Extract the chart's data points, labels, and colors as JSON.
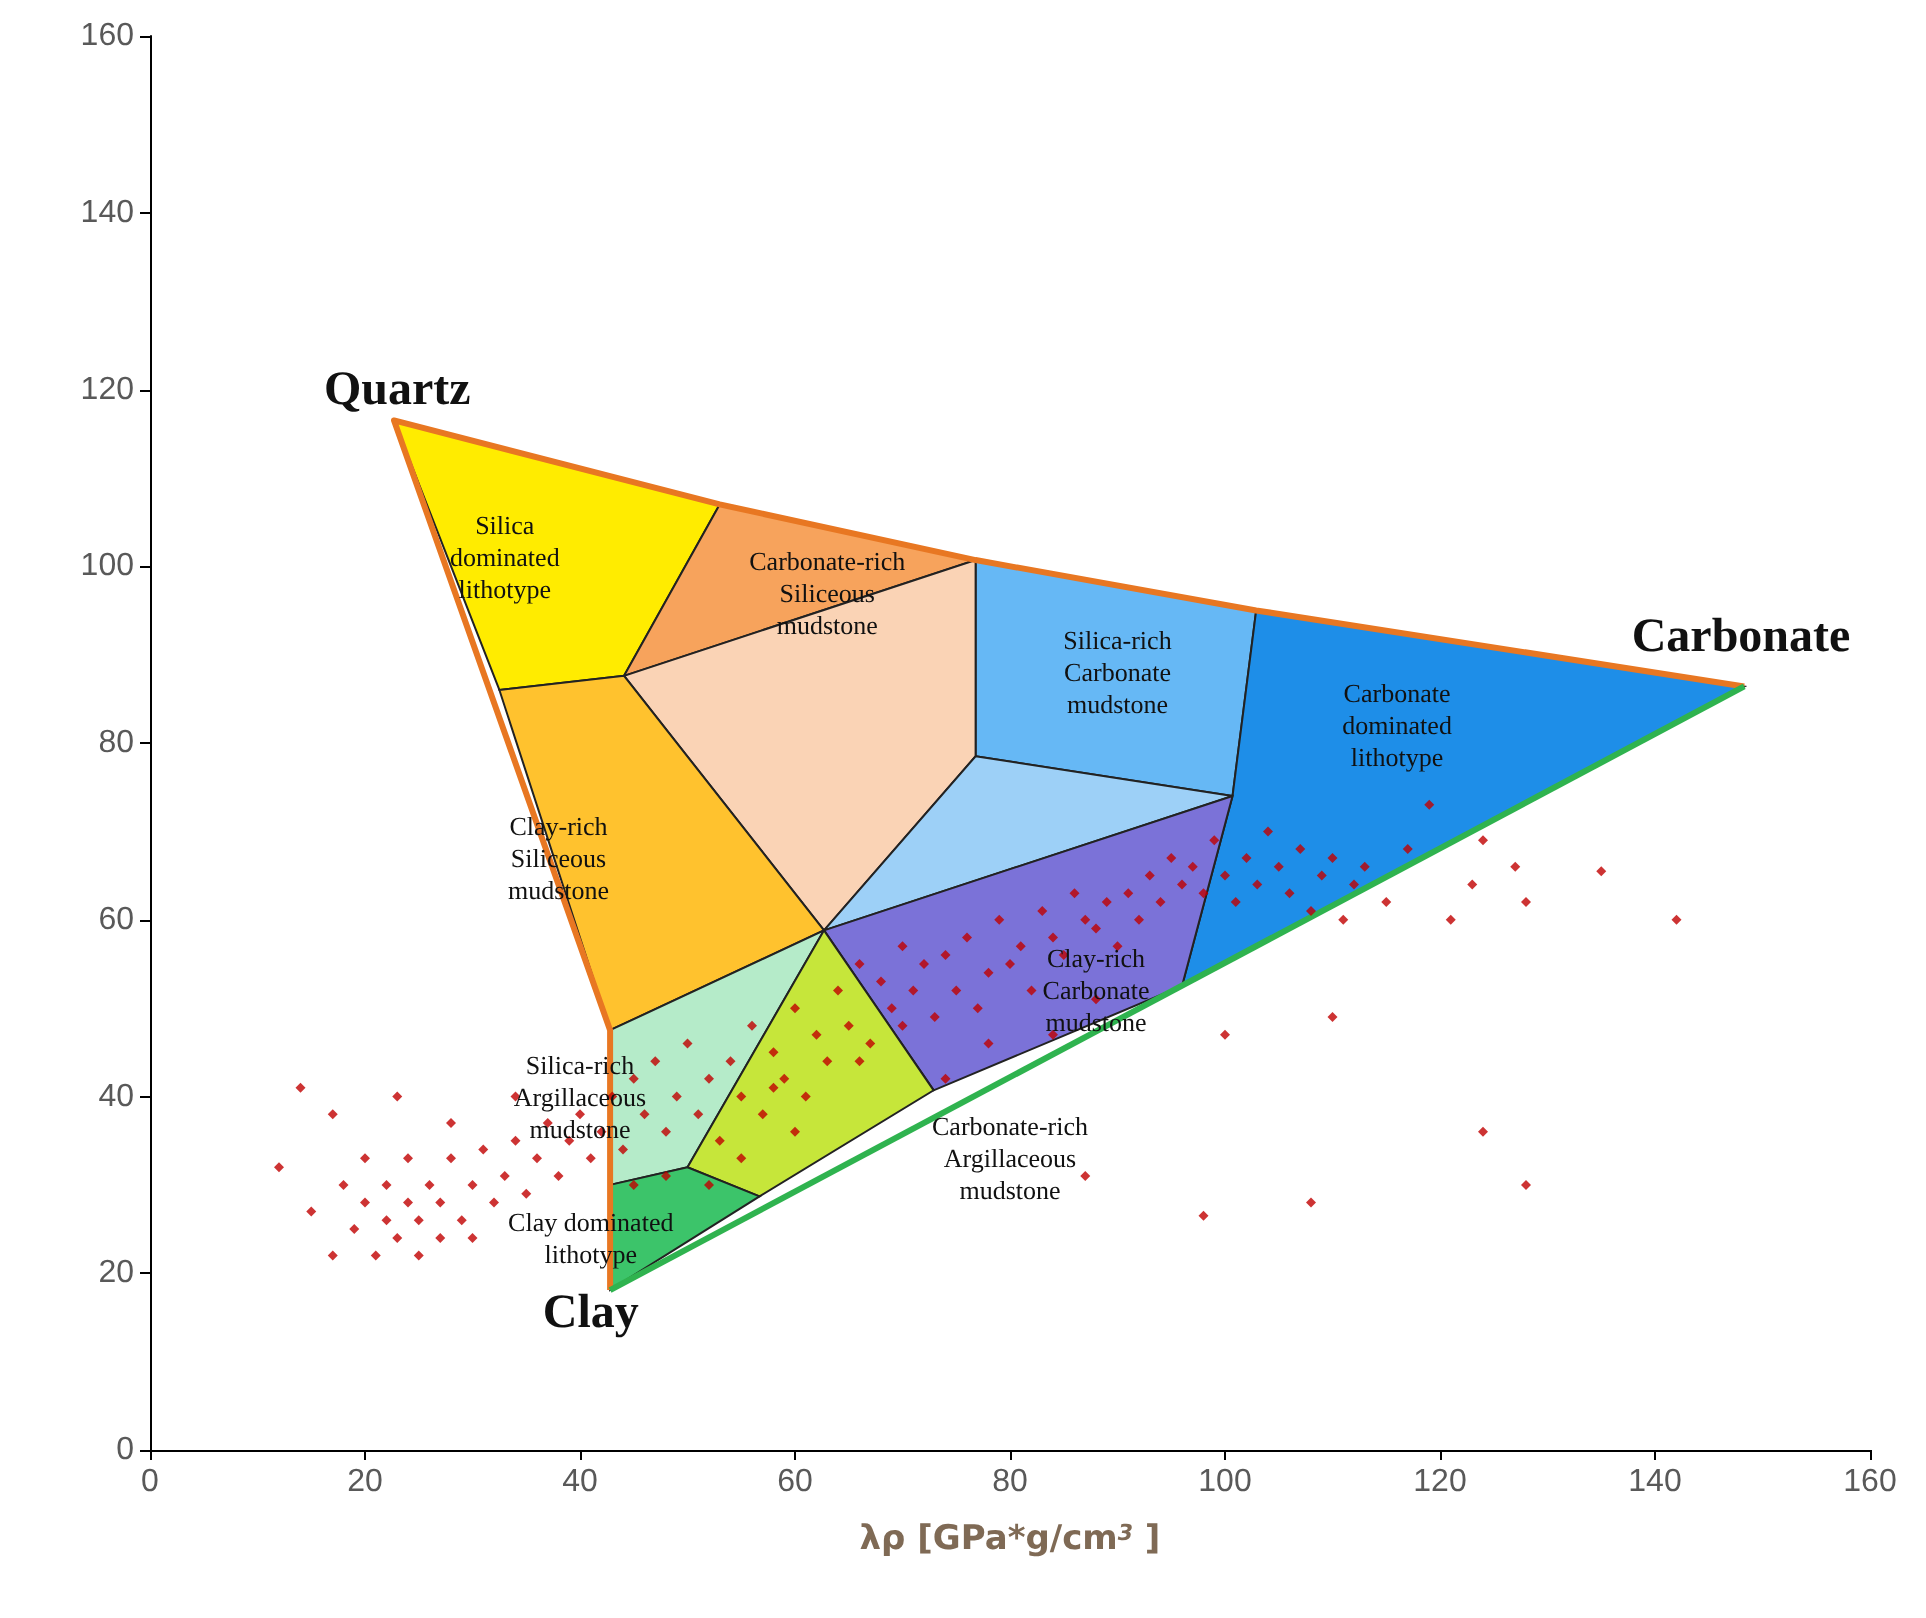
{
  "chart_data": {
    "type": "scatter",
    "xlabel": "λρ [GPa*g/cm$^{3}$ ]",
    "xlim": [
      0,
      160
    ],
    "ylim": [
      0,
      160
    ],
    "xticks": [
      0,
      20,
      40,
      60,
      80,
      100,
      120,
      140,
      160
    ],
    "yticks": [
      0,
      20,
      40,
      60,
      80,
      100,
      120,
      140,
      160
    ],
    "grid": false,
    "marker": "diamond",
    "series": [
      {
        "color": "#c00000",
        "x": [
          12,
          14,
          15,
          17,
          17,
          18,
          19,
          20,
          20,
          21,
          22,
          22,
          23,
          24,
          24,
          25,
          25,
          26,
          27,
          27,
          28,
          29,
          30,
          30,
          31,
          32,
          33,
          34,
          35,
          36,
          37,
          38,
          39,
          40,
          41,
          23,
          28,
          34,
          42,
          43,
          44,
          45,
          46,
          47,
          48,
          49,
          50,
          51,
          52,
          53,
          54,
          55,
          56,
          57,
          58,
          59,
          60,
          61,
          62,
          48,
          52,
          55,
          45,
          63,
          64,
          65,
          66,
          67,
          68,
          69,
          70,
          71,
          72,
          73,
          74,
          75,
          76,
          77,
          78,
          79,
          80,
          81,
          82,
          83,
          84,
          85,
          86,
          87,
          88,
          89,
          90,
          91,
          92,
          93,
          94,
          95,
          96,
          97,
          98,
          99,
          100,
          101,
          102,
          103,
          104,
          105,
          106,
          107,
          108,
          109,
          110,
          111,
          112,
          113,
          115,
          117,
          119,
          121,
          123,
          124,
          127,
          128,
          135,
          142,
          124,
          128,
          108,
          98,
          87,
          100,
          110,
          66,
          74,
          84,
          88,
          70,
          78,
          60,
          58
        ],
        "values": [
          32,
          41,
          27,
          38,
          22,
          30,
          25,
          28,
          33,
          22,
          26,
          30,
          24,
          28,
          33,
          22,
          26,
          30,
          24,
          28,
          33,
          26,
          30,
          24,
          34,
          28,
          31,
          35,
          29,
          33,
          37,
          31,
          35,
          38,
          33,
          40,
          37,
          40,
          36,
          40,
          34,
          42,
          38,
          44,
          36,
          40,
          46,
          38,
          42,
          35,
          44,
          40,
          48,
          38,
          45,
          42,
          50,
          40,
          47,
          31,
          30,
          33,
          30,
          44,
          52,
          48,
          55,
          46,
          53,
          50,
          57,
          52,
          55,
          49,
          56,
          52,
          58,
          50,
          54,
          60,
          55,
          57,
          52,
          61,
          58,
          56,
          63,
          60,
          59,
          62,
          57,
          63,
          60,
          65,
          62,
          67,
          64,
          66,
          63,
          69,
          65,
          62,
          67,
          64,
          70,
          66,
          63,
          68,
          61,
          65,
          67,
          60,
          64,
          66,
          62,
          68,
          73,
          60,
          64,
          69,
          66,
          62,
          65.5,
          60,
          36,
          30,
          28,
          26.5,
          31,
          47,
          49,
          44,
          42,
          47,
          51,
          48,
          46,
          36,
          41
        ]
      }
    ],
    "annotations": [
      "Quartz",
      "Carbonate",
      "Clay",
      "Silica\ndominated\nlithotype",
      "Carbonate-rich\nSiliceous\nmudstone",
      "Silica-rich\nCarbonate\nmudstone",
      "Carbonate\ndominated\nlithotype",
      "Clay-rich\nSiliceous\nmudstone",
      "Clay-rich\nCarbonate\nmudstone",
      "Silica-rich\nArgillaceous\nmudstone",
      "Carbonate-rich\nArgillaceous\nmudstone",
      "Clay dominated\nlithotype"
    ]
  }
}
